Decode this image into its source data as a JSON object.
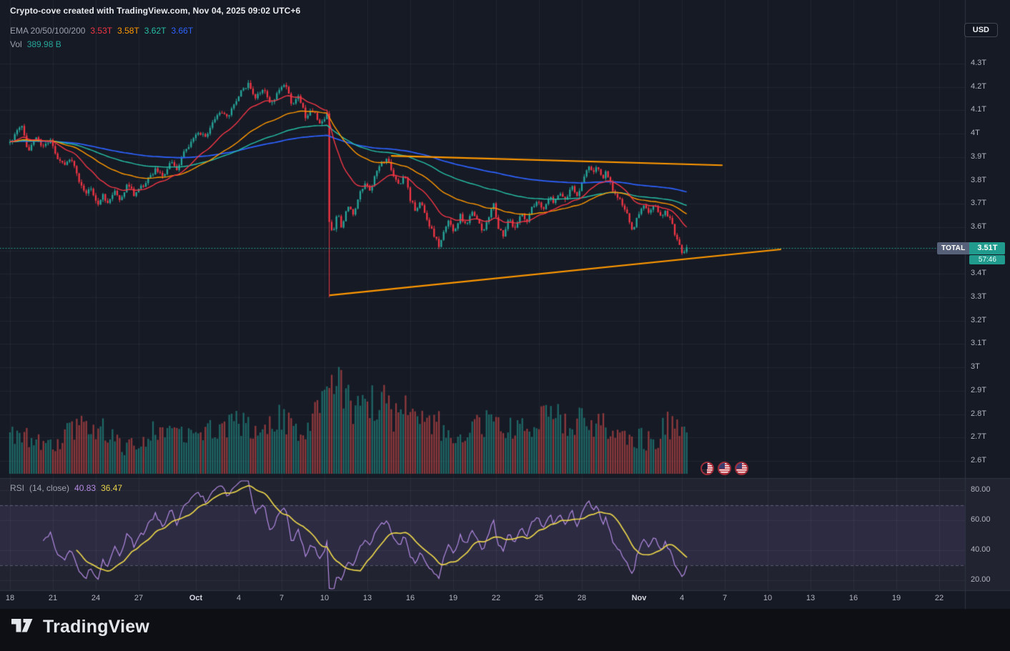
{
  "watermark": "Crypto-cove created with TradingView.com, Nov 04, 2025 09:02 UTC+6",
  "price_axis": {
    "currency_button": "USD",
    "ticks": [
      {
        "label": "4.3T",
        "p": 4.3
      },
      {
        "label": "4.2T",
        "p": 4.2
      },
      {
        "label": "4.1T",
        "p": 4.1
      },
      {
        "label": "4T",
        "p": 4.0
      },
      {
        "label": "3.9T",
        "p": 3.9
      },
      {
        "label": "3.8T",
        "p": 3.8
      },
      {
        "label": "3.7T",
        "p": 3.7
      },
      {
        "label": "3.6T",
        "p": 3.6
      },
      {
        "label": "3.4T",
        "p": 3.4
      },
      {
        "label": "3.3T",
        "p": 3.3
      },
      {
        "label": "3.2T",
        "p": 3.2
      },
      {
        "label": "3.1T",
        "p": 3.1
      },
      {
        "label": "3T",
        "p": 3.0
      },
      {
        "label": "2.9T",
        "p": 2.9
      },
      {
        "label": "2.8T",
        "p": 2.8
      },
      {
        "label": "2.7T",
        "p": 2.7
      },
      {
        "label": "2.6T",
        "p": 2.6
      }
    ]
  },
  "time_axis": [
    {
      "d": 0,
      "label": "18"
    },
    {
      "d": 3,
      "label": "21"
    },
    {
      "d": 6,
      "label": "24"
    },
    {
      "d": 9,
      "label": "27"
    },
    {
      "d": 13,
      "label": "Oct"
    },
    {
      "d": 16,
      "label": "4"
    },
    {
      "d": 19,
      "label": "7"
    },
    {
      "d": 22,
      "label": "10"
    },
    {
      "d": 25,
      "label": "13"
    },
    {
      "d": 28,
      "label": "16"
    },
    {
      "d": 31,
      "label": "19"
    },
    {
      "d": 34,
      "label": "22"
    },
    {
      "d": 37,
      "label": "25"
    },
    {
      "d": 40,
      "label": "28"
    },
    {
      "d": 44,
      "label": "Nov"
    },
    {
      "d": 47,
      "label": "4"
    },
    {
      "d": 50,
      "label": "7"
    },
    {
      "d": 53,
      "label": "10"
    },
    {
      "d": 56,
      "label": "13"
    },
    {
      "d": 59,
      "label": "16"
    },
    {
      "d": 62,
      "label": "19"
    },
    {
      "d": 65,
      "label": "22"
    }
  ],
  "legend": {
    "ema_label": "EMA 20/50/100/200",
    "vol_label": "Vol",
    "vol_value": "389.98 B"
  },
  "rsi_legend": {
    "label": "RSI",
    "params": "(14, close)",
    "values": [
      {
        "text": "40.83",
        "color": "#b48ae2"
      },
      {
        "text": "36.47",
        "color": "#e8d24a"
      }
    ],
    "ticks": [
      {
        "label": "80.00",
        "v": 80
      },
      {
        "label": "60.00",
        "v": 60
      },
      {
        "label": "40.00",
        "v": 40
      },
      {
        "label": "20.00",
        "v": 20
      }
    ]
  },
  "price_badge": {
    "symbol": "TOTAL",
    "price": "3.51T",
    "countdown": "57:46"
  },
  "markers": {
    "flags": [
      "us-flag-dark-half",
      "us-flag",
      "us-flag"
    ]
  },
  "footer": {
    "brand": "TradingView"
  },
  "colors": {
    "background": "#161a25",
    "rsi_pane": "#212330",
    "rsi_band": "rgba(145,120,230,0.10)",
    "up": "#26a69a",
    "down": "#f23645",
    "grid": "rgba(255,255,255,0.05)",
    "trendline": "#ff9800",
    "price_line": "#26a69a",
    "axis_text": "#b2b5be",
    "separator": "#2f3342",
    "rsi_line": "#b48ae2",
    "rsi_ma": "#e8d24a"
  },
  "chart_data": {
    "type": "candlestick",
    "symbol": "TOTAL",
    "quote_currency": "USD",
    "title": "Crypto Total Market Cap with EMA 20/50/100/200, Volume and RSI(14)",
    "y_axis": {
      "unit": "T (trillion USD)",
      "min": 2.6,
      "max": 4.3,
      "tick_step": 0.1
    },
    "x_axis": {
      "span": "Sep 18 - Nov 4 plus empty future space to Nov 22",
      "day0": "Sep 18",
      "last_day": 47.4
    },
    "bars_per_day": 6,
    "day_span": [
      0,
      47.4
    ],
    "current_price": 3.51,
    "close_anchors": [
      [
        0,
        3.96
      ],
      [
        0.4,
        4.0
      ],
      [
        0.8,
        4.04
      ],
      [
        1.3,
        3.92
      ],
      [
        1.8,
        3.99
      ],
      [
        2.3,
        3.94
      ],
      [
        2.8,
        3.98
      ],
      [
        3.3,
        3.89
      ],
      [
        3.8,
        3.86
      ],
      [
        4.3,
        3.9
      ],
      [
        4.8,
        3.8
      ],
      [
        5.3,
        3.74
      ],
      [
        5.7,
        3.77
      ],
      [
        6.1,
        3.69
      ],
      [
        6.5,
        3.74
      ],
      [
        6.9,
        3.7
      ],
      [
        7.3,
        3.76
      ],
      [
        7.7,
        3.72
      ],
      [
        8.2,
        3.78
      ],
      [
        8.7,
        3.74
      ],
      [
        9.2,
        3.77
      ],
      [
        9.7,
        3.81
      ],
      [
        10.2,
        3.85
      ],
      [
        10.7,
        3.82
      ],
      [
        11.2,
        3.88
      ],
      [
        11.7,
        3.85
      ],
      [
        12.2,
        3.92
      ],
      [
        12.7,
        3.97
      ],
      [
        13.2,
        4.01
      ],
      [
        13.7,
        3.98
      ],
      [
        14.2,
        4.05
      ],
      [
        14.7,
        4.1
      ],
      [
        15.2,
        4.07
      ],
      [
        15.7,
        4.13
      ],
      [
        16.2,
        4.18
      ],
      [
        16.7,
        4.22
      ],
      [
        17.2,
        4.15
      ],
      [
        17.7,
        4.2
      ],
      [
        18.2,
        4.12
      ],
      [
        18.7,
        4.17
      ],
      [
        19.2,
        4.22
      ],
      [
        19.7,
        4.13
      ],
      [
        20.2,
        4.16
      ],
      [
        20.7,
        4.07
      ],
      [
        21.2,
        4.1
      ],
      [
        21.7,
        4.04
      ],
      [
        22.0,
        4.06
      ],
      [
        22.17,
        4.08
      ],
      [
        22.33,
        3.62
      ],
      [
        22.6,
        3.56
      ],
      [
        22.9,
        3.67
      ],
      [
        23.2,
        3.6
      ],
      [
        23.6,
        3.7
      ],
      [
        24,
        3.65
      ],
      [
        24.4,
        3.73
      ],
      [
        24.8,
        3.79
      ],
      [
        25.2,
        3.75
      ],
      [
        25.6,
        3.83
      ],
      [
        26,
        3.87
      ],
      [
        26.4,
        3.9
      ],
      [
        26.8,
        3.82
      ],
      [
        27.2,
        3.78
      ],
      [
        27.6,
        3.82
      ],
      [
        28,
        3.72
      ],
      [
        28.4,
        3.67
      ],
      [
        28.8,
        3.71
      ],
      [
        29.2,
        3.63
      ],
      [
        29.6,
        3.57
      ],
      [
        30,
        3.52
      ],
      [
        30.3,
        3.57
      ],
      [
        30.7,
        3.63
      ],
      [
        31.1,
        3.58
      ],
      [
        31.5,
        3.65
      ],
      [
        31.9,
        3.6
      ],
      [
        32.3,
        3.67
      ],
      [
        32.7,
        3.63
      ],
      [
        33.1,
        3.58
      ],
      [
        33.5,
        3.65
      ],
      [
        33.8,
        3.71
      ],
      [
        34.1,
        3.6
      ],
      [
        34.5,
        3.57
      ],
      [
        34.9,
        3.63
      ],
      [
        35.3,
        3.6
      ],
      [
        35.7,
        3.66
      ],
      [
        36.1,
        3.62
      ],
      [
        36.5,
        3.68
      ],
      [
        36.9,
        3.71
      ],
      [
        37.3,
        3.67
      ],
      [
        37.7,
        3.73
      ],
      [
        38.1,
        3.7
      ],
      [
        38.5,
        3.75
      ],
      [
        38.9,
        3.72
      ],
      [
        39.3,
        3.77
      ],
      [
        39.7,
        3.74
      ],
      [
        40.1,
        3.8
      ],
      [
        40.5,
        3.86
      ],
      [
        40.8,
        3.83
      ],
      [
        41.1,
        3.87
      ],
      [
        41.4,
        3.8
      ],
      [
        41.7,
        3.84
      ],
      [
        42.1,
        3.77
      ],
      [
        42.5,
        3.73
      ],
      [
        42.9,
        3.69
      ],
      [
        43.3,
        3.63
      ],
      [
        43.6,
        3.58
      ],
      [
        43.9,
        3.65
      ],
      [
        44.3,
        3.69
      ],
      [
        44.7,
        3.66
      ],
      [
        45.1,
        3.7
      ],
      [
        45.5,
        3.65
      ],
      [
        45.9,
        3.67
      ],
      [
        46.3,
        3.61
      ],
      [
        46.6,
        3.56
      ],
      [
        46.9,
        3.51
      ],
      [
        47.1,
        3.48
      ],
      [
        47.25,
        3.53
      ],
      [
        47.4,
        3.51
      ]
    ],
    "crash_wick": {
      "day": 22.333,
      "low": 3.3,
      "note": "Oct 10 flash-crash wick down to ~3.3T"
    },
    "volume_anchors": [
      [
        0,
        0.5
      ],
      [
        1,
        0.4
      ],
      [
        2,
        0.35
      ],
      [
        3,
        0.3
      ],
      [
        4,
        0.45
      ],
      [
        5,
        0.5
      ],
      [
        6,
        0.55
      ],
      [
        7,
        0.4
      ],
      [
        8,
        0.3
      ],
      [
        9,
        0.35
      ],
      [
        10,
        0.45
      ],
      [
        11,
        0.4
      ],
      [
        12,
        0.5
      ],
      [
        13,
        0.45
      ],
      [
        14,
        0.55
      ],
      [
        15,
        0.5
      ],
      [
        16,
        0.6
      ],
      [
        17,
        0.55
      ],
      [
        18,
        0.5
      ],
      [
        19,
        0.6
      ],
      [
        20,
        0.5
      ],
      [
        21,
        0.55
      ],
      [
        22,
        0.75
      ],
      [
        22.4,
        1.0
      ],
      [
        23,
        0.95
      ],
      [
        23.6,
        0.85
      ],
      [
        24,
        0.8
      ],
      [
        25,
        0.75
      ],
      [
        26,
        0.8
      ],
      [
        27,
        0.65
      ],
      [
        28,
        0.7
      ],
      [
        29,
        0.6
      ],
      [
        30,
        0.55
      ],
      [
        31,
        0.4
      ],
      [
        32,
        0.45
      ],
      [
        33,
        0.55
      ],
      [
        34,
        0.6
      ],
      [
        35,
        0.55
      ],
      [
        36,
        0.5
      ],
      [
        37,
        0.6
      ],
      [
        38,
        0.6
      ],
      [
        39,
        0.6
      ],
      [
        40,
        0.6
      ],
      [
        41,
        0.55
      ],
      [
        42,
        0.5
      ],
      [
        43,
        0.45
      ],
      [
        44,
        0.4
      ],
      [
        45,
        0.35
      ],
      [
        46,
        0.55
      ],
      [
        47,
        0.5
      ],
      [
        47.4,
        0.45
      ]
    ],
    "volume_last_display": "389.98 B",
    "emas": [
      {
        "period": 20,
        "color": "#f23645",
        "last": "3.53T"
      },
      {
        "period": 50,
        "color": "#ff9800",
        "last": "3.58T"
      },
      {
        "period": 100,
        "color": "#26bfa6",
        "last": "3.62T"
      },
      {
        "period": 200,
        "color": "#2d62ff",
        "last": "3.66T"
      }
    ],
    "trendlines": [
      {
        "d1": 26.7,
        "p1": 3.905,
        "d2": 49.8,
        "p2": 3.865,
        "color": "#ff9800",
        "note": "descending resistance"
      },
      {
        "d1": 22.4,
        "p1": 3.309,
        "d2": 53.9,
        "p2": 3.505,
        "color": "#ff9800",
        "note": "ascending support"
      }
    ],
    "rsi": {
      "period": 14,
      "last": 40.83,
      "ma_last": 36.47,
      "band": [
        30,
        70
      ],
      "range_ticks": [
        20,
        40,
        60,
        80
      ]
    }
  }
}
